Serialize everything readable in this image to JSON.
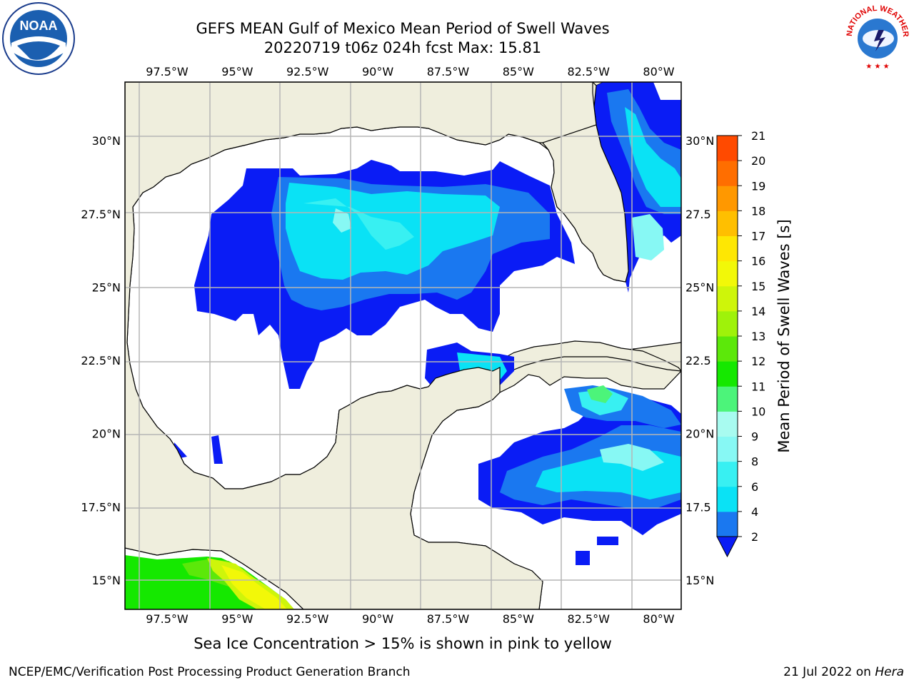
{
  "title": {
    "line1": "GEFS MEAN Gulf of Mexico Mean Period of Swell Waves",
    "line2": "20220719 t06z 024h fcst   Max: 15.81"
  },
  "map": {
    "projection": "PlateCarree",
    "lon_range": [
      -99.0,
      -79.2
    ],
    "lat_range": [
      14.0,
      32.0
    ],
    "lon_ticks": [
      "97.5°W",
      "95°W",
      "92.5°W",
      "90°W",
      "87.5°W",
      "85°W",
      "82.5°W",
      "80°W"
    ],
    "lat_ticks": [
      "15°N",
      "17.5°N",
      "20°N",
      "22.5°N",
      "25°N",
      "27.5°N",
      "30°N"
    ],
    "lat_ticks_right": [
      "15°N",
      "17.5°N",
      "20°N",
      "22.5°N",
      "25°N",
      "27.5°N",
      "30°N"
    ],
    "gridlines": true,
    "land_color": "#efeedd",
    "ocean_color": "#ffffff"
  },
  "colorbar": {
    "label": "Mean Period of Swell Waves [s]",
    "ticks": [
      "2",
      "4",
      "6",
      "8",
      "9",
      "10",
      "11",
      "12",
      "13",
      "14",
      "15",
      "16",
      "17",
      "18",
      "19",
      "20",
      "21"
    ],
    "colors": [
      "#0a1cf5",
      "#1a78f0",
      "#0ae2f5",
      "#38f0f2",
      "#87f8f4",
      "#a8fbf0",
      "#4cf47a",
      "#15e800",
      "#5ce80a",
      "#9ff20a",
      "#cef50a",
      "#f2f808",
      "#fee703",
      "#ffbf00",
      "#ff9800",
      "#ff6e00",
      "#ff4a00",
      "#ff1e00"
    ],
    "extend": "min"
  },
  "chart_data": {
    "type": "heatmap",
    "variable": "Mean Period of Swell Waves",
    "units": "s",
    "max_value": 15.81,
    "levels": [
      2,
      4,
      6,
      8,
      9,
      10,
      11,
      12,
      13,
      14,
      15,
      16,
      17,
      18,
      19,
      20,
      21
    ]
  },
  "footer": {
    "note": "Sea Ice Concentration > 15% is shown in pink to yellow",
    "credit": "NCEP/EMC/Verification Post Processing Product Generation Branch",
    "date": "21 Jul 2022 on ",
    "host": "Hera"
  },
  "logos": {
    "noaa": "NOAA",
    "nws": "NATIONAL WEATHER SERVICE"
  }
}
